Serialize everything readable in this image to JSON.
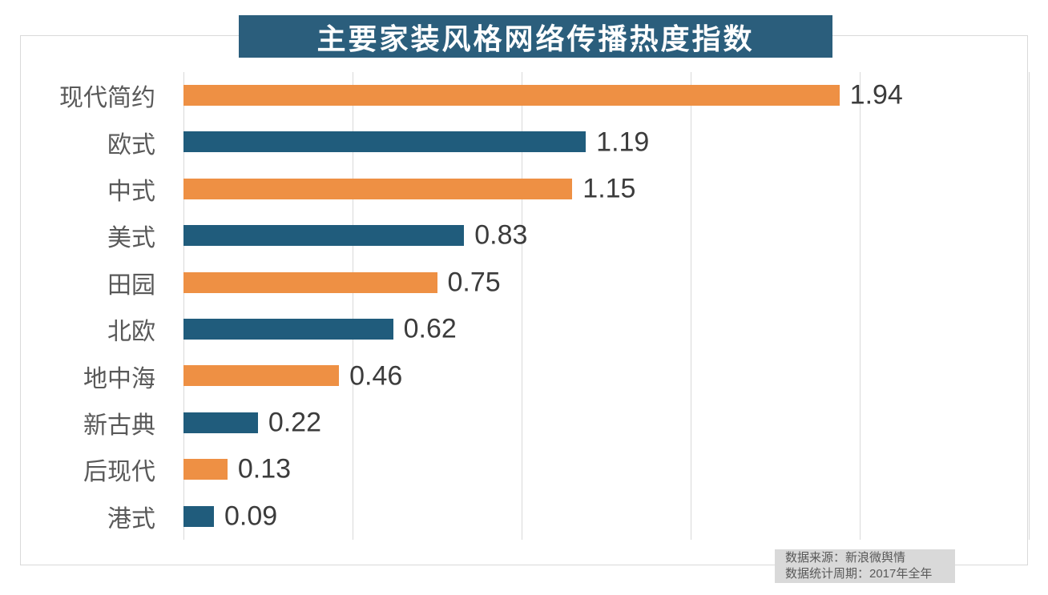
{
  "title": "主要家装风格网络传播热度指数",
  "source": {
    "line1": "数据来源：新浪微舆情",
    "line2": "数据统计周期：2017年全年"
  },
  "chart_data": {
    "type": "bar",
    "orientation": "horizontal",
    "title": "主要家装风格网络传播热度指数",
    "categories": [
      "现代简约",
      "欧式",
      "中式",
      "美式",
      "田园",
      "北欧",
      "地中海",
      "新古典",
      "后现代",
      "港式"
    ],
    "values": [
      1.94,
      1.19,
      1.15,
      0.83,
      0.75,
      0.62,
      0.46,
      0.22,
      0.13,
      0.09
    ],
    "value_labels": [
      "1.94",
      "1.19",
      "1.15",
      "0.83",
      "0.75",
      "0.62",
      "0.46",
      "0.22",
      "0.13",
      "0.09"
    ],
    "xlabel": "",
    "ylabel": "",
    "xlim": [
      0,
      2.5
    ],
    "gridline_step": 0.5,
    "grid": true,
    "legend": false,
    "bar_colors_alternating": [
      "#EE9044",
      "#205C7C"
    ]
  },
  "colors": {
    "title_bg": "#2B5E7C",
    "title_text": "#FFFFFF",
    "gridline": "#D9D9D9",
    "frame_border": "#D9D9D9",
    "category_label": "#595959",
    "value_label": "#3C3C3C",
    "source_bg": "#D9D9D9",
    "source_text": "#595959"
  }
}
